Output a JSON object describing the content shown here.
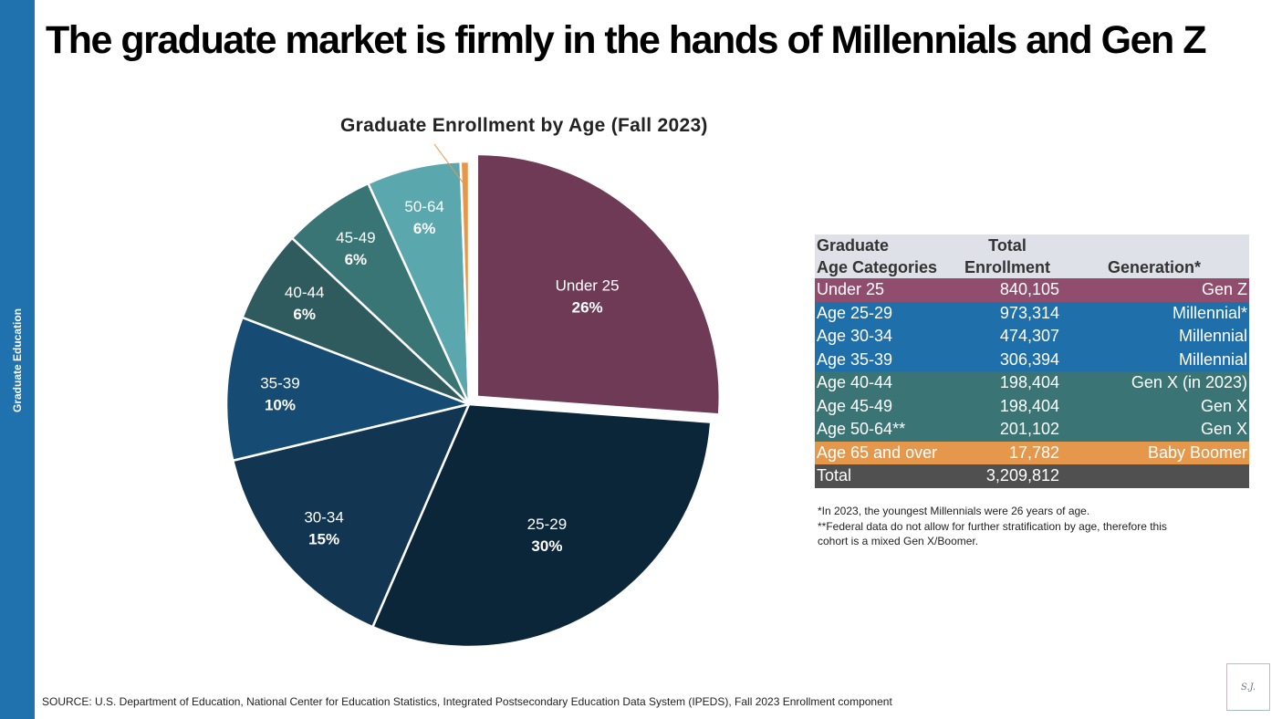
{
  "sidebar_label": "Graduate Education",
  "title": "The graduate market is firmly in the hands of Millennials and Gen Z",
  "chart_data": {
    "type": "pie",
    "title": "Graduate Enrollment by Age (Fall 2023)",
    "start": "12 o'clock, clockwise",
    "exploded": "Under 25",
    "slices": [
      {
        "label": "Under 25",
        "value": 840105,
        "pct_label": "26%",
        "color": "#6e3a56"
      },
      {
        "label": "25-29",
        "value": 973314,
        "pct_label": "30%",
        "color": "#0b2539"
      },
      {
        "label": "30-34",
        "value": 474307,
        "pct_label": "15%",
        "color": "#123651"
      },
      {
        "label": "35-39",
        "value": 306394,
        "pct_label": "10%",
        "color": "#164c74"
      },
      {
        "label": "40-44",
        "value": 198404,
        "pct_label": "6%",
        "color": "#2f5b5e"
      },
      {
        "label": "45-49",
        "value": 198404,
        "pct_label": "6%",
        "color": "#3a7576"
      },
      {
        "label": "50-64",
        "value": 201102,
        "pct_label": "6%",
        "color": "#5aa7ae"
      },
      {
        "label": "",
        "value": 17782,
        "pct_label": "",
        "color": "#e8974a"
      }
    ]
  },
  "table": {
    "headers": [
      "Graduate\nAge Categories",
      "Total\nEnrollment",
      "Generation*"
    ],
    "header_col1_l1": "Graduate",
    "header_col1_l2": "Age Categories",
    "header_col2_l1": "Total",
    "header_col2_l2": "Enrollment",
    "header_col3": "Generation*",
    "rows": [
      {
        "age": "Under 25",
        "total": "840,105",
        "gen": "Gen Z",
        "color": "#914d6e"
      },
      {
        "age": "Age 25-29",
        "total": "973,314",
        "gen": "Millennial*",
        "color": "#1f70aa"
      },
      {
        "age": "Age 30-34",
        "total": "474,307",
        "gen": "Millennial",
        "color": "#1f70aa"
      },
      {
        "age": "Age 35-39",
        "total": "306,394",
        "gen": "Millennial",
        "color": "#1f70aa"
      },
      {
        "age": "Age 40-44",
        "total": "198,404",
        "gen": "Gen X (in 2023)",
        "color": "#3a7474"
      },
      {
        "age": "Age 45-49",
        "total": "198,404",
        "gen": "Gen X",
        "color": "#3a7474"
      },
      {
        "age": "Age 50-64**",
        "total": "201,102",
        "gen": "Gen X",
        "color": "#3a7474"
      },
      {
        "age": "Age 65 and over",
        "total": "17,782",
        "gen": "Baby Boomer",
        "color": "#e5974b"
      },
      {
        "age": "Total",
        "total": "3,209,812",
        "gen": "",
        "color": "#505050"
      }
    ]
  },
  "notes": [
    "*In 2023, the youngest Millennials were 26 years of age.",
    "**Federal data do not allow for further stratification by age, therefore this",
    "cohort is a mixed Gen X/Boomer."
  ],
  "source": "SOURCE: U.S. Department of Education, National Center for Education Statistics, Integrated Postsecondary Education Data System (IPEDS), Fall 2023 Enrollment component",
  "logo_text": "Scott Jaffe"
}
